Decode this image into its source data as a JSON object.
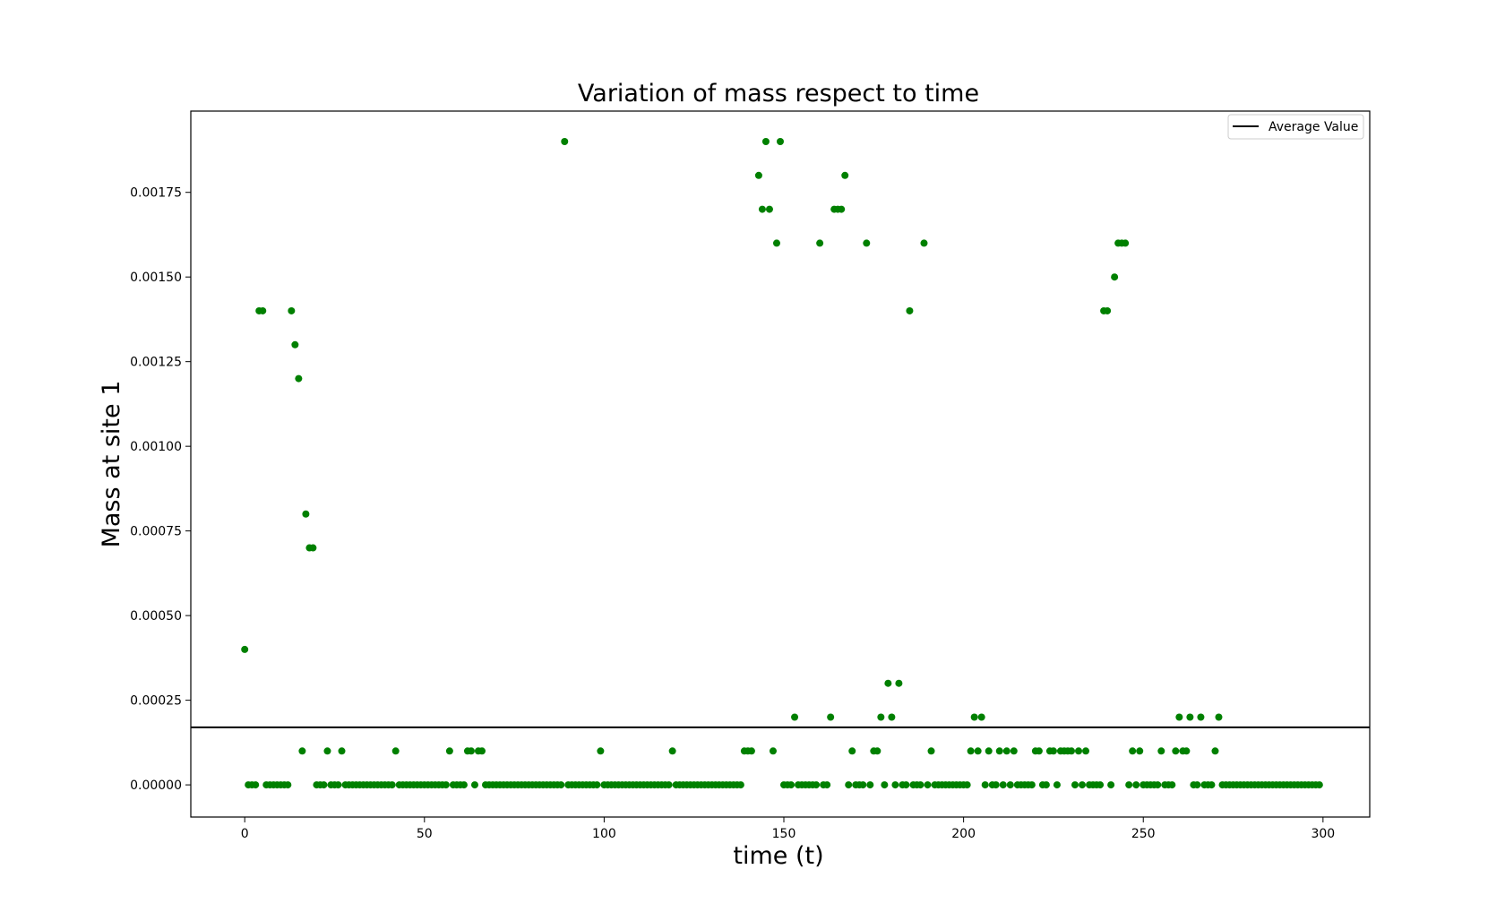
{
  "chart_data": {
    "type": "scatter",
    "title": "Variation of mass respect to time",
    "xlabel": "time (t)",
    "ylabel": "Mass at site 1",
    "xlim": [
      -15,
      313
    ],
    "ylim": [
      -9.5e-05,
      0.00199
    ],
    "xticks": [
      0,
      50,
      100,
      150,
      200,
      250,
      300
    ],
    "xtick_labels": [
      "0",
      "50",
      "100",
      "150",
      "200",
      "250",
      "300"
    ],
    "yticks": [
      0,
      0.00025,
      0.0005,
      0.00075,
      0.001,
      0.00125,
      0.0015,
      0.00175
    ],
    "ytick_labels": [
      "0.00000",
      "0.00025",
      "0.00050",
      "0.00075",
      "0.00100",
      "0.00125",
      "0.00150",
      "0.00175"
    ],
    "grid": false,
    "legend": {
      "position": "top-right",
      "entries": [
        "Average Value"
      ]
    },
    "colors": {
      "points": "#008000",
      "average_line": "#000000"
    },
    "average_value": 0.00017,
    "series": [
      {
        "marker": "dot",
        "color": "#008000",
        "points": [
          [
            0,
            0.0004
          ],
          [
            1,
            0
          ],
          [
            2,
            0
          ],
          [
            3,
            0
          ],
          [
            4,
            0.0014
          ],
          [
            5,
            0.0014
          ],
          [
            6,
            0
          ],
          [
            7,
            0
          ],
          [
            8,
            0
          ],
          [
            9,
            0
          ],
          [
            10,
            0
          ],
          [
            11,
            0
          ],
          [
            12,
            0
          ],
          [
            13,
            0.0014
          ],
          [
            14,
            0.0013
          ],
          [
            15,
            0.0012
          ],
          [
            16,
            0.0001
          ],
          [
            17,
            0.0008
          ],
          [
            18,
            0.0007
          ],
          [
            19,
            0.0007
          ],
          [
            20,
            0
          ],
          [
            21,
            0
          ],
          [
            22,
            0
          ],
          [
            23,
            0.0001
          ],
          [
            24,
            0
          ],
          [
            25,
            0
          ],
          [
            26,
            0
          ],
          [
            27,
            0.0001
          ],
          [
            28,
            0
          ],
          [
            29,
            0
          ],
          [
            30,
            0
          ],
          [
            31,
            0
          ],
          [
            32,
            0
          ],
          [
            33,
            0
          ],
          [
            34,
            0
          ],
          [
            35,
            0
          ],
          [
            36,
            0
          ],
          [
            37,
            0
          ],
          [
            38,
            0
          ],
          [
            39,
            0
          ],
          [
            40,
            0
          ],
          [
            41,
            0
          ],
          [
            42,
            0.0001
          ],
          [
            43,
            0
          ],
          [
            44,
            0
          ],
          [
            45,
            0
          ],
          [
            46,
            0
          ],
          [
            47,
            0
          ],
          [
            48,
            0
          ],
          [
            49,
            0
          ],
          [
            50,
            0
          ],
          [
            51,
            0
          ],
          [
            52,
            0
          ],
          [
            53,
            0
          ],
          [
            54,
            0
          ],
          [
            55,
            0
          ],
          [
            56,
            0
          ],
          [
            57,
            0.0001
          ],
          [
            58,
            0
          ],
          [
            59,
            0
          ],
          [
            60,
            0
          ],
          [
            61,
            0
          ],
          [
            62,
            0.0001
          ],
          [
            63,
            0.0001
          ],
          [
            64,
            0
          ],
          [
            65,
            0.0001
          ],
          [
            66,
            0.0001
          ],
          [
            67,
            0
          ],
          [
            68,
            0
          ],
          [
            69,
            0
          ],
          [
            70,
            0
          ],
          [
            71,
            0
          ],
          [
            72,
            0
          ],
          [
            73,
            0
          ],
          [
            74,
            0
          ],
          [
            75,
            0
          ],
          [
            76,
            0
          ],
          [
            77,
            0
          ],
          [
            78,
            0
          ],
          [
            79,
            0
          ],
          [
            80,
            0
          ],
          [
            81,
            0
          ],
          [
            82,
            0
          ],
          [
            83,
            0
          ],
          [
            84,
            0
          ],
          [
            85,
            0
          ],
          [
            86,
            0
          ],
          [
            87,
            0
          ],
          [
            88,
            0
          ],
          [
            89,
            0.0019
          ],
          [
            90,
            0
          ],
          [
            91,
            0
          ],
          [
            92,
            0
          ],
          [
            93,
            0
          ],
          [
            94,
            0
          ],
          [
            95,
            0
          ],
          [
            96,
            0
          ],
          [
            97,
            0
          ],
          [
            98,
            0
          ],
          [
            99,
            0.0001
          ],
          [
            100,
            0
          ],
          [
            101,
            0
          ],
          [
            102,
            0
          ],
          [
            103,
            0
          ],
          [
            104,
            0
          ],
          [
            105,
            0
          ],
          [
            106,
            0
          ],
          [
            107,
            0
          ],
          [
            108,
            0
          ],
          [
            109,
            0
          ],
          [
            110,
            0
          ],
          [
            111,
            0
          ],
          [
            112,
            0
          ],
          [
            113,
            0
          ],
          [
            114,
            0
          ],
          [
            115,
            0
          ],
          [
            116,
            0
          ],
          [
            117,
            0
          ],
          [
            118,
            0
          ],
          [
            119,
            0.0001
          ],
          [
            120,
            0
          ],
          [
            121,
            0
          ],
          [
            122,
            0
          ],
          [
            123,
            0
          ],
          [
            124,
            0
          ],
          [
            125,
            0
          ],
          [
            126,
            0
          ],
          [
            127,
            0
          ],
          [
            128,
            0
          ],
          [
            129,
            0
          ],
          [
            130,
            0
          ],
          [
            131,
            0
          ],
          [
            132,
            0
          ],
          [
            133,
            0
          ],
          [
            134,
            0
          ],
          [
            135,
            0
          ],
          [
            136,
            0
          ],
          [
            137,
            0
          ],
          [
            138,
            0
          ],
          [
            139,
            0.0001
          ],
          [
            140,
            0.0001
          ],
          [
            141,
            0.0001
          ],
          [
            143,
            0.0018
          ],
          [
            144,
            0.0017
          ],
          [
            145,
            0.0019
          ],
          [
            146,
            0.0017
          ],
          [
            147,
            0.0001
          ],
          [
            148,
            0.0016
          ],
          [
            149,
            0.0019
          ],
          [
            150,
            0
          ],
          [
            151,
            0
          ],
          [
            152,
            0
          ],
          [
            153,
            0.0002
          ],
          [
            154,
            0
          ],
          [
            155,
            0
          ],
          [
            156,
            0
          ],
          [
            157,
            0
          ],
          [
            158,
            0
          ],
          [
            159,
            0
          ],
          [
            160,
            0.0016
          ],
          [
            161,
            0
          ],
          [
            162,
            0
          ],
          [
            163,
            0.0002
          ],
          [
            164,
            0.0017
          ],
          [
            165,
            0.0017
          ],
          [
            166,
            0.0017
          ],
          [
            167,
            0.0018
          ],
          [
            168,
            0
          ],
          [
            169,
            0.0001
          ],
          [
            170,
            0
          ],
          [
            171,
            0
          ],
          [
            172,
            0
          ],
          [
            173,
            0.0016
          ],
          [
            174,
            0
          ],
          [
            175,
            0.0001
          ],
          [
            176,
            0.0001
          ],
          [
            177,
            0.0002
          ],
          [
            178,
            0
          ],
          [
            179,
            0.0003
          ],
          [
            180,
            0.0002
          ],
          [
            181,
            0
          ],
          [
            182,
            0.0003
          ],
          [
            183,
            0
          ],
          [
            184,
            0
          ],
          [
            185,
            0.0014
          ],
          [
            186,
            0
          ],
          [
            187,
            0
          ],
          [
            188,
            0
          ],
          [
            189,
            0.0016
          ],
          [
            190,
            0
          ],
          [
            191,
            0.0001
          ],
          [
            192,
            0
          ],
          [
            193,
            0
          ],
          [
            194,
            0
          ],
          [
            195,
            0
          ],
          [
            196,
            0
          ],
          [
            197,
            0
          ],
          [
            198,
            0
          ],
          [
            199,
            0
          ],
          [
            200,
            0
          ],
          [
            201,
            0
          ],
          [
            202,
            0.0001
          ],
          [
            203,
            0.0002
          ],
          [
            204,
            0.0001
          ],
          [
            205,
            0.0002
          ],
          [
            206,
            0
          ],
          [
            207,
            0.0001
          ],
          [
            208,
            0
          ],
          [
            209,
            0
          ],
          [
            210,
            0.0001
          ],
          [
            211,
            0
          ],
          [
            212,
            0.0001
          ],
          [
            213,
            0
          ],
          [
            214,
            0.0001
          ],
          [
            215,
            0
          ],
          [
            216,
            0
          ],
          [
            217,
            0
          ],
          [
            218,
            0
          ],
          [
            219,
            0
          ],
          [
            220,
            0.0001
          ],
          [
            221,
            0.0001
          ],
          [
            222,
            0
          ],
          [
            223,
            0
          ],
          [
            224,
            0.0001
          ],
          [
            225,
            0.0001
          ],
          [
            226,
            0
          ],
          [
            227,
            0.0001
          ],
          [
            228,
            0.0001
          ],
          [
            229,
            0.0001
          ],
          [
            230,
            0.0001
          ],
          [
            231,
            0
          ],
          [
            232,
            0.0001
          ],
          [
            233,
            0
          ],
          [
            234,
            0.0001
          ],
          [
            235,
            0
          ],
          [
            236,
            0
          ],
          [
            237,
            0
          ],
          [
            238,
            0
          ],
          [
            239,
            0.0014
          ],
          [
            240,
            0.0014
          ],
          [
            241,
            0
          ],
          [
            242,
            0.0015
          ],
          [
            243,
            0.0016
          ],
          [
            244,
            0.0016
          ],
          [
            245,
            0.0016
          ],
          [
            246,
            0
          ],
          [
            247,
            0.0001
          ],
          [
            248,
            0
          ],
          [
            249,
            0.0001
          ],
          [
            250,
            0
          ],
          [
            251,
            0
          ],
          [
            252,
            0
          ],
          [
            253,
            0
          ],
          [
            254,
            0
          ],
          [
            255,
            0.0001
          ],
          [
            256,
            0
          ],
          [
            257,
            0
          ],
          [
            258,
            0
          ],
          [
            259,
            0.0001
          ],
          [
            260,
            0.0002
          ],
          [
            261,
            0.0001
          ],
          [
            262,
            0.0001
          ],
          [
            263,
            0.0002
          ],
          [
            264,
            0
          ],
          [
            265,
            0
          ],
          [
            266,
            0.0002
          ],
          [
            267,
            0
          ],
          [
            268,
            0
          ],
          [
            269,
            0
          ],
          [
            270,
            0.0001
          ],
          [
            271,
            0.0002
          ],
          [
            272,
            0
          ],
          [
            273,
            0
          ],
          [
            274,
            0
          ],
          [
            275,
            0
          ],
          [
            276,
            0
          ],
          [
            277,
            0
          ],
          [
            278,
            0
          ],
          [
            279,
            0
          ],
          [
            280,
            0
          ],
          [
            281,
            0
          ],
          [
            282,
            0
          ],
          [
            283,
            0
          ],
          [
            284,
            0
          ],
          [
            285,
            0
          ],
          [
            286,
            0
          ],
          [
            287,
            0
          ],
          [
            288,
            0
          ],
          [
            289,
            0
          ],
          [
            290,
            0
          ],
          [
            291,
            0
          ],
          [
            292,
            0
          ],
          [
            293,
            0
          ],
          [
            294,
            0
          ],
          [
            295,
            0
          ],
          [
            296,
            0
          ],
          [
            297,
            0
          ],
          [
            298,
            0
          ],
          [
            299,
            0
          ]
        ]
      }
    ]
  }
}
